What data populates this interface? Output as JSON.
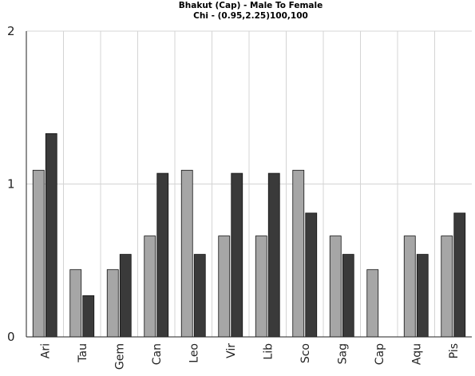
{
  "chart_data": {
    "type": "bar",
    "title": "Bhakut (Cap) - Male To Female",
    "subtitle": "Chi - (0.95,2.25)100,100",
    "xlabel": "",
    "ylabel": "",
    "categories": [
      "Ari",
      "Tau",
      "Gem",
      "Can",
      "Leo",
      "Vir",
      "Lib",
      "Sco",
      "Sag",
      "Cap",
      "Aqu",
      "Pis"
    ],
    "series": [
      {
        "values": [
          1.09,
          0.44,
          0.44,
          0.66,
          1.09,
          0.66,
          0.66,
          1.09,
          0.66,
          0.44,
          0.66,
          0.66
        ]
      },
      {
        "values": [
          1.33,
          0.27,
          0.54,
          1.07,
          0.54,
          1.07,
          1.07,
          0.81,
          0.54,
          0.0,
          0.54,
          0.81
        ]
      }
    ],
    "ylim": [
      0,
      2
    ],
    "yticks": [
      "0",
      "1",
      "2"
    ],
    "grid": true,
    "colors": [
      "#a6a6a6",
      "#3a3a3a"
    ]
  }
}
